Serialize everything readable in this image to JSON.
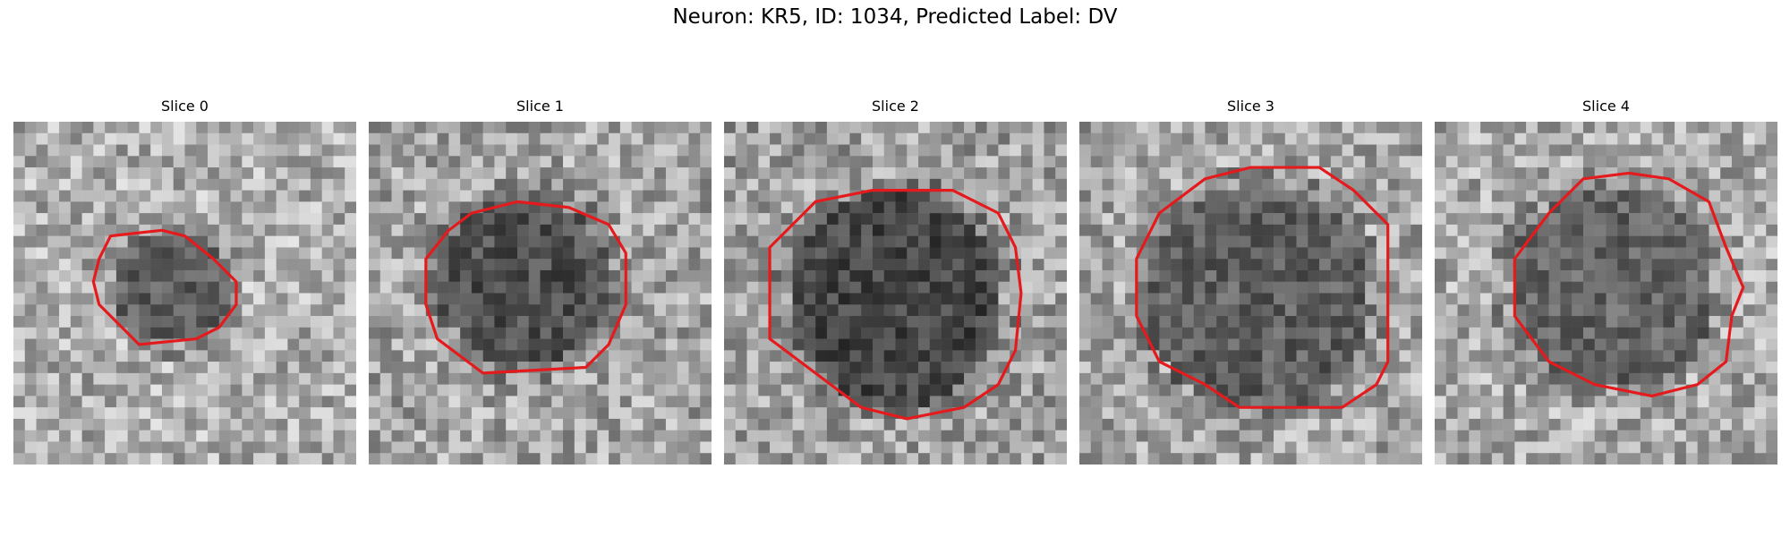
{
  "figure": {
    "title": "Neuron: KR5, ID: 1034, Predicted Label: DV",
    "contour_color": "#e41a1c",
    "colormap": "gray"
  },
  "panels": [
    {
      "title": "Slice 0"
    },
    {
      "title": "Slice 1"
    },
    {
      "title": "Slice 2"
    },
    {
      "title": "Slice 3"
    },
    {
      "title": "Slice 4"
    }
  ]
}
